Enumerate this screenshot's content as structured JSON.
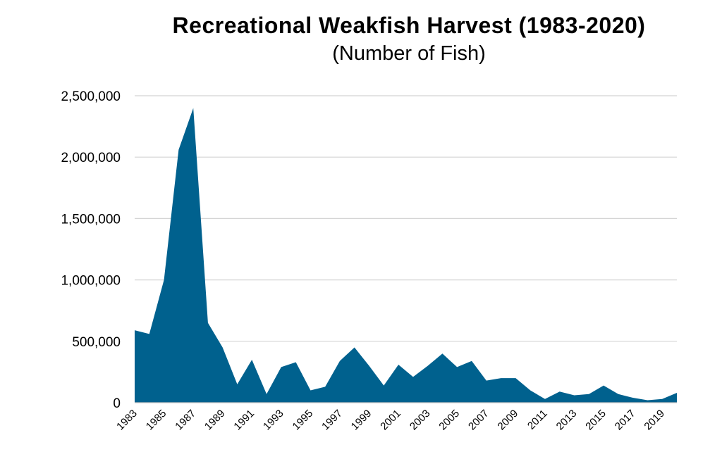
{
  "chart_data": {
    "type": "area",
    "title": "Recreational Weakfish Harvest (1983-2020)",
    "subtitle": "(Number of Fish)",
    "xlabel": "",
    "ylabel": "",
    "ylim": [
      0,
      2500000
    ],
    "yticks": [
      0,
      500000,
      1000000,
      1500000,
      2000000,
      2500000
    ],
    "ytick_labels": [
      "0",
      "500,000",
      "1,000,000",
      "1,500,000",
      "2,000,000",
      "2,500,000"
    ],
    "xtick_labels": [
      "1983",
      "1985",
      "1987",
      "1989",
      "1991",
      "1993",
      "1995",
      "1997",
      "1999",
      "2001",
      "2003",
      "2005",
      "2007",
      "2009",
      "2011",
      "2013",
      "2015",
      "2017",
      "2019"
    ],
    "grid": true,
    "legend": "none",
    "color": "#00618e",
    "x": [
      1983,
      1984,
      1985,
      1986,
      1987,
      1988,
      1989,
      1990,
      1991,
      1992,
      1993,
      1994,
      1995,
      1996,
      1997,
      1998,
      1999,
      2000,
      2001,
      2002,
      2003,
      2004,
      2005,
      2006,
      2007,
      2008,
      2009,
      2010,
      2011,
      2012,
      2013,
      2014,
      2015,
      2016,
      2017,
      2018,
      2019,
      2020
    ],
    "values": [
      590000,
      560000,
      1000000,
      2060000,
      2400000,
      650000,
      450000,
      150000,
      350000,
      70000,
      290000,
      330000,
      100000,
      130000,
      340000,
      450000,
      300000,
      140000,
      310000,
      210000,
      300000,
      400000,
      290000,
      340000,
      180000,
      200000,
      200000,
      100000,
      30000,
      90000,
      60000,
      70000,
      140000,
      70000,
      40000,
      20000,
      30000,
      80000
    ]
  }
}
